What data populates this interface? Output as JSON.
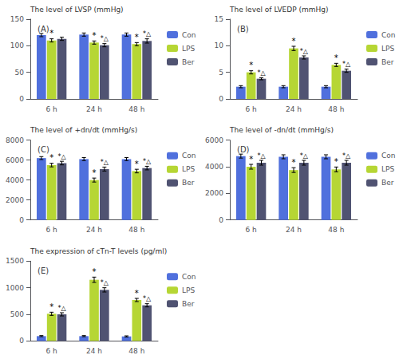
{
  "chart_data": [
    {
      "type": "bar",
      "title": "(A)",
      "ylabel": "The level of LVSP (mmHg)",
      "categories": [
        "6 h",
        "24 h",
        "48 h"
      ],
      "series": [
        {
          "name": "Con",
          "values": [
            120,
            121,
            121
          ],
          "errors": [
            3,
            3,
            3
          ]
        },
        {
          "name": "LPS",
          "values": [
            110,
            106,
            103
          ],
          "errors": [
            3,
            3,
            3
          ]
        },
        {
          "name": "Ber",
          "values": [
            113,
            101,
            109
          ],
          "errors": [
            3,
            3,
            4
          ]
        }
      ],
      "annotations": [
        {
          "text": "*",
          "series": "LPS",
          "category": "6 h"
        },
        {
          "text": "*",
          "series": "LPS",
          "category": "24 h"
        },
        {
          "text": "*",
          "series": "LPS",
          "category": "48 h"
        },
        {
          "text": "*△",
          "series": "Ber",
          "category": "24 h"
        },
        {
          "text": "*△",
          "series": "Ber",
          "category": "48 h"
        }
      ],
      "ylim": [
        0,
        150
      ],
      "yticks": [
        0,
        50,
        100,
        150
      ],
      "grid": false,
      "legend": "right"
    },
    {
      "type": "bar",
      "title": "(B)",
      "ylabel": "The level of LVEDP (mmHg)",
      "categories": [
        "6 h",
        "24 h",
        "48 h"
      ],
      "series": [
        {
          "name": "Con",
          "values": [
            2.3,
            2.3,
            2.3
          ],
          "errors": [
            0.2,
            0.2,
            0.2
          ]
        },
        {
          "name": "LPS",
          "values": [
            5.0,
            9.5,
            6.4
          ],
          "errors": [
            0.3,
            0.4,
            0.3
          ]
        },
        {
          "name": "Ber",
          "values": [
            3.8,
            7.8,
            5.3
          ],
          "errors": [
            0.2,
            0.3,
            0.3
          ]
        }
      ],
      "annotations": [
        {
          "text": "*",
          "series": "LPS",
          "category": "6 h"
        },
        {
          "text": "*",
          "series": "LPS",
          "category": "24 h"
        },
        {
          "text": "*",
          "series": "LPS",
          "category": "48 h"
        },
        {
          "text": "*△",
          "series": "Ber",
          "category": "6 h"
        },
        {
          "text": "*△",
          "series": "Ber",
          "category": "24 h"
        },
        {
          "text": "*△",
          "series": "Ber",
          "category": "48 h"
        }
      ],
      "ylim": [
        0,
        15
      ],
      "yticks": [
        0,
        5,
        10,
        15
      ],
      "grid": false,
      "legend": "right"
    },
    {
      "type": "bar",
      "title": "(C)",
      "ylabel": "The level of +dn/dt (mmHg/s)",
      "categories": [
        "6 h",
        "24 h",
        "48 h"
      ],
      "series": [
        {
          "name": "Con",
          "values": [
            6200,
            6100,
            6100
          ],
          "errors": [
            150,
            150,
            150
          ]
        },
        {
          "name": "LPS",
          "values": [
            5500,
            4000,
            4900
          ],
          "errors": [
            180,
            200,
            180
          ]
        },
        {
          "name": "Ber",
          "values": [
            5700,
            5100,
            5200
          ],
          "errors": [
            180,
            200,
            180
          ]
        }
      ],
      "annotations": [
        {
          "text": "*",
          "series": "LPS",
          "category": "6 h"
        },
        {
          "text": "*",
          "series": "LPS",
          "category": "24 h"
        },
        {
          "text": "*",
          "series": "LPS",
          "category": "48 h"
        },
        {
          "text": "*△",
          "series": "Ber",
          "category": "6 h"
        },
        {
          "text": "*△",
          "series": "Ber",
          "category": "24 h"
        },
        {
          "text": "*△",
          "series": "Ber",
          "category": "48 h"
        }
      ],
      "ylim": [
        0,
        8000
      ],
      "yticks": [
        0,
        2000,
        4000,
        6000,
        8000
      ],
      "grid": false,
      "legend": "right"
    },
    {
      "type": "bar",
      "title": "(D)",
      "ylabel": "The level of -dn/dt (mmHg/s)",
      "categories": [
        "6 h",
        "24 h",
        "48 h"
      ],
      "series": [
        {
          "name": "Con",
          "values": [
            4800,
            4750,
            4750
          ],
          "errors": [
            150,
            150,
            150
          ]
        },
        {
          "name": "LPS",
          "values": [
            4000,
            3750,
            3800
          ],
          "errors": [
            180,
            180,
            180
          ]
        },
        {
          "name": "Ber",
          "values": [
            4300,
            4300,
            4300
          ],
          "errors": [
            180,
            180,
            180
          ]
        }
      ],
      "annotations": [
        {
          "text": "*",
          "series": "LPS",
          "category": "6 h"
        },
        {
          "text": "*",
          "series": "LPS",
          "category": "24 h"
        },
        {
          "text": "*",
          "series": "LPS",
          "category": "48 h"
        },
        {
          "text": "*△",
          "series": "Ber",
          "category": "6 h"
        },
        {
          "text": "*△",
          "series": "Ber",
          "category": "24 h"
        },
        {
          "text": "*△",
          "series": "Ber",
          "category": "48 h"
        }
      ],
      "ylim": [
        0,
        6000
      ],
      "yticks": [
        0,
        2000,
        4000,
        6000
      ],
      "grid": false,
      "legend": "right"
    },
    {
      "type": "bar",
      "title": "(E)",
      "ylabel": "The expression of cTn-T levels (pg/ml)",
      "categories": [
        "6 h",
        "24 h",
        "48 h"
      ],
      "series": [
        {
          "name": "Con",
          "values": [
            90,
            90,
            85
          ],
          "errors": [
            10,
            10,
            10
          ]
        },
        {
          "name": "LPS",
          "values": [
            510,
            1150,
            770
          ],
          "errors": [
            30,
            50,
            30
          ]
        },
        {
          "name": "Ber",
          "values": [
            500,
            960,
            670
          ],
          "errors": [
            30,
            40,
            30
          ]
        }
      ],
      "annotations": [
        {
          "text": "*",
          "series": "LPS",
          "category": "6 h"
        },
        {
          "text": "*",
          "series": "LPS",
          "category": "24 h"
        },
        {
          "text": "*",
          "series": "LPS",
          "category": "48 h"
        },
        {
          "text": "*△",
          "series": "Ber",
          "category": "6 h"
        },
        {
          "text": "*△",
          "series": "Ber",
          "category": "24 h"
        },
        {
          "text": "*△",
          "series": "Ber",
          "category": "48 h"
        }
      ],
      "ylim": [
        0,
        1500
      ],
      "yticks": [
        0,
        500,
        1000,
        1500
      ],
      "grid": false,
      "legend": "right"
    }
  ]
}
